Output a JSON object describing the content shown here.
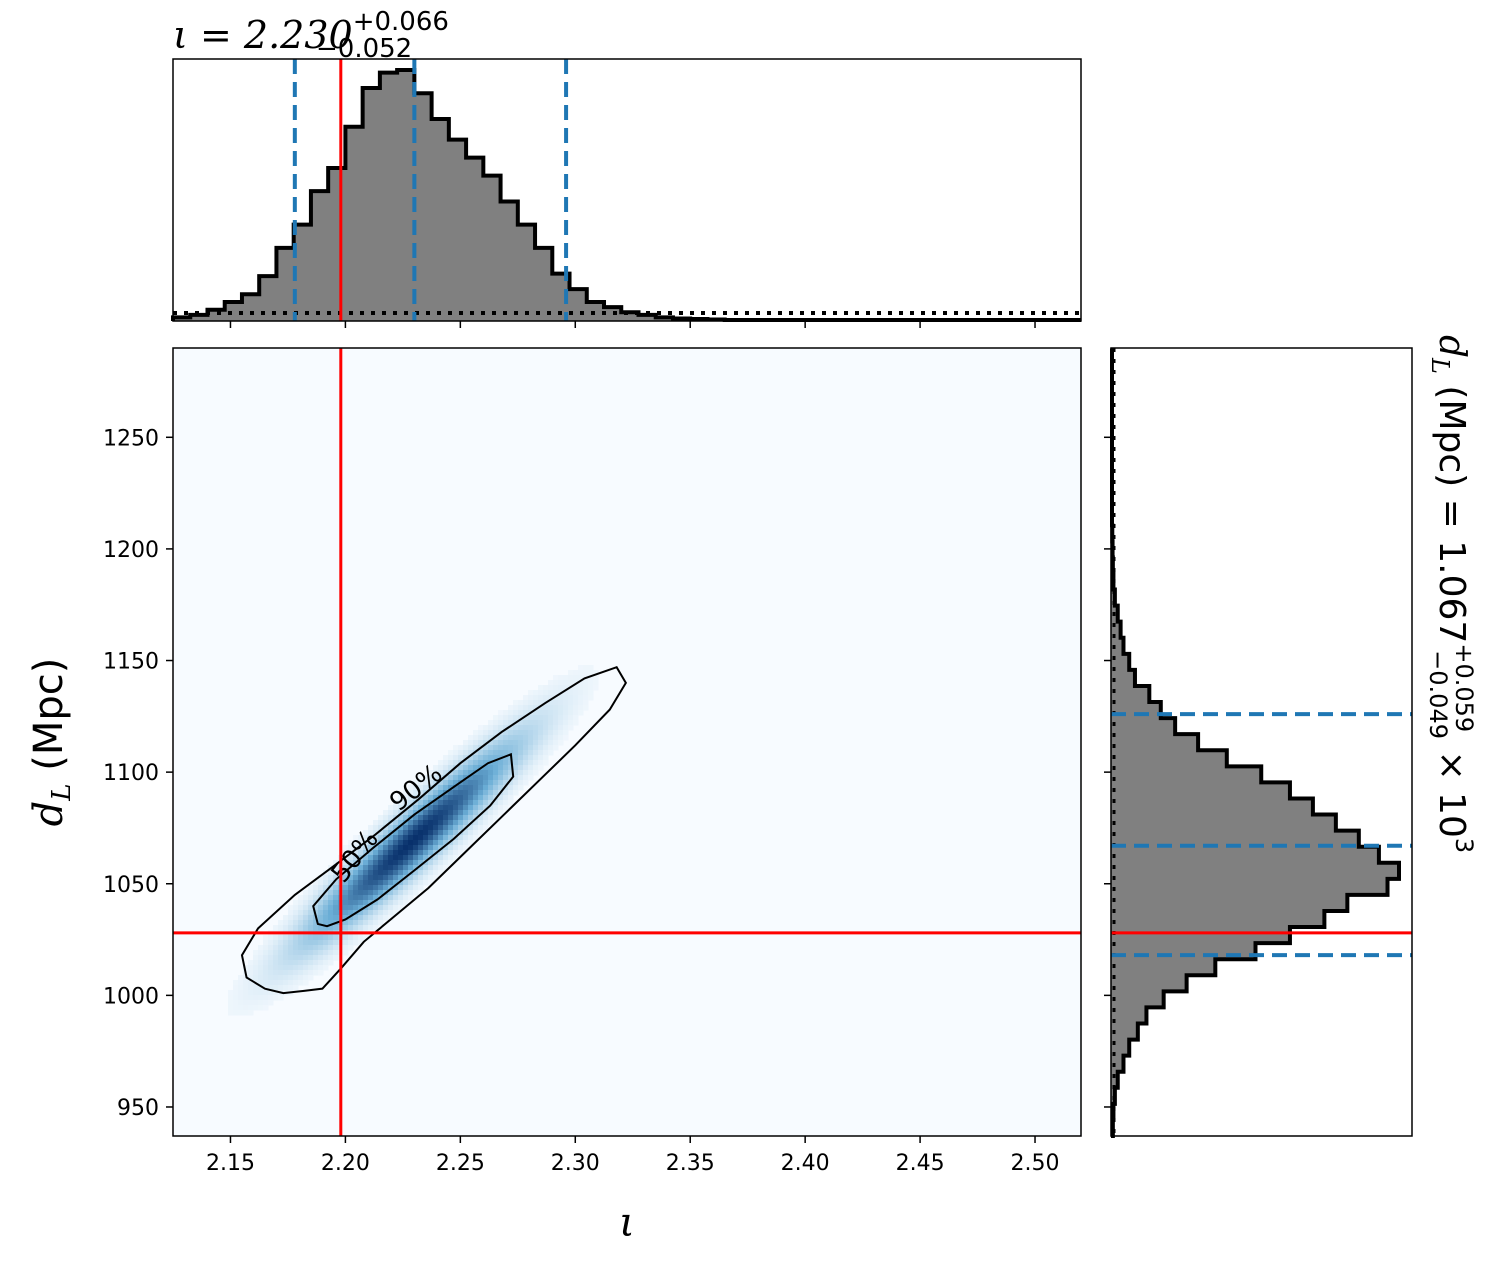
{
  "chart_data": {
    "type": "corner-plot",
    "colors": {
      "histogram_fill": "#808080",
      "histogram_edge": "#000000",
      "quantile_line": "#1f77b4",
      "truth_line": "#ff0000",
      "density_cmap_low": "#f7fbff",
      "density_cmap_high": "#08306b",
      "contour": "#000000"
    },
    "truth": {
      "iota": 2.198,
      "dL": 1028
    },
    "iota_panel": {
      "title_main": "ι = 2.230",
      "title_sup": "+0.066",
      "title_sub": "−0.052",
      "median": 2.23,
      "quantiles": [
        2.178,
        2.23,
        2.296
      ],
      "xlim": [
        2.125,
        2.52
      ],
      "histogram": {
        "bin_start": 2.125,
        "bin_width": 0.0075,
        "counts": [
          1,
          2,
          4,
          7,
          10,
          17,
          28,
          37,
          50,
          59,
          75,
          90,
          96,
          97,
          88,
          78,
          70,
          63,
          56,
          46,
          37,
          28,
          18,
          12,
          7,
          5,
          3,
          2,
          1,
          0.6,
          0.4,
          0.2,
          0,
          0,
          0,
          0,
          0,
          0,
          0,
          0,
          0,
          0,
          0,
          0,
          0,
          0,
          0,
          0,
          0,
          0,
          0,
          0,
          0
        ]
      },
      "prior_level": 3
    },
    "joint_panel": {
      "xlabel": "ι",
      "ylabel_main": "d",
      "ylabel_sub": "L",
      "ylabel_unit": " (Mpc)",
      "xlim": [
        2.125,
        2.52
      ],
      "ylim": [
        937,
        1290
      ],
      "xticks": [
        "2.15",
        "2.20",
        "2.25",
        "2.30",
        "2.35",
        "2.40",
        "2.45",
        "2.50"
      ],
      "xtick_values": [
        2.15,
        2.2,
        2.25,
        2.3,
        2.35,
        2.4,
        2.45,
        2.5
      ],
      "yticks": [
        "950",
        "1000",
        "1050",
        "1100",
        "1150",
        "1200",
        "1250"
      ],
      "ytick_values": [
        950,
        1000,
        1050,
        1100,
        1150,
        1200,
        1250
      ],
      "contour_labels": [
        {
          "text": "50%",
          "x": 2.207,
          "y": 1060,
          "angle": -52
        },
        {
          "text": "90%",
          "x": 2.233,
          "y": 1090,
          "angle": -38
        }
      ],
      "contour_90": [
        [
          2.165,
          1003
        ],
        [
          2.157,
          1008
        ],
        [
          2.155,
          1018
        ],
        [
          2.162,
          1030
        ],
        [
          2.178,
          1045
        ],
        [
          2.195,
          1058
        ],
        [
          2.213,
          1072
        ],
        [
          2.232,
          1088
        ],
        [
          2.25,
          1104
        ],
        [
          2.268,
          1118
        ],
        [
          2.287,
          1131
        ],
        [
          2.304,
          1142
        ],
        [
          2.318,
          1147
        ],
        [
          2.322,
          1140
        ],
        [
          2.315,
          1128
        ],
        [
          2.3,
          1112
        ],
        [
          2.284,
          1096
        ],
        [
          2.268,
          1080
        ],
        [
          2.252,
          1064
        ],
        [
          2.236,
          1048
        ],
        [
          2.222,
          1036
        ],
        [
          2.208,
          1024
        ],
        [
          2.198,
          1012
        ],
        [
          2.19,
          1003
        ],
        [
          2.182,
          1002
        ],
        [
          2.173,
          1001
        ]
      ],
      "contour_50": [
        [
          2.188,
          1032
        ],
        [
          2.186,
          1040
        ],
        [
          2.196,
          1052
        ],
        [
          2.212,
          1066
        ],
        [
          2.23,
          1081
        ],
        [
          2.248,
          1094
        ],
        [
          2.262,
          1104
        ],
        [
          2.272,
          1108
        ],
        [
          2.273,
          1098
        ],
        [
          2.263,
          1085
        ],
        [
          2.247,
          1070
        ],
        [
          2.23,
          1056
        ],
        [
          2.214,
          1043
        ],
        [
          2.2,
          1034
        ],
        [
          2.192,
          1031
        ]
      ]
    },
    "dL_panel": {
      "title_main": "d",
      "title_sub_L": "L",
      "title_text": " (Mpc) = 1.067",
      "title_sup": "+0.059",
      "title_sub": "−0.049",
      "title_exp": " × 10",
      "title_exp_power": "3",
      "median": 1067,
      "quantiles": [
        1018,
        1067,
        1126
      ],
      "ylim": [
        937,
        1290
      ],
      "histogram": {
        "bin_start": 937,
        "bin_width": 7.2,
        "counts": [
          0.3,
          0.5,
          1,
          2,
          4,
          6,
          9,
          12,
          18,
          26,
          36,
          50,
          62,
          74,
          82,
          96,
          100,
          93,
          86,
          78,
          70,
          62,
          52,
          40,
          30,
          22,
          17,
          13,
          8,
          6,
          4,
          3,
          2,
          1,
          0.5,
          0.3,
          0.2,
          0.1,
          0,
          0,
          0,
          0,
          0,
          0,
          0,
          0,
          0,
          0,
          0
        ]
      },
      "prior_level": 1
    }
  }
}
